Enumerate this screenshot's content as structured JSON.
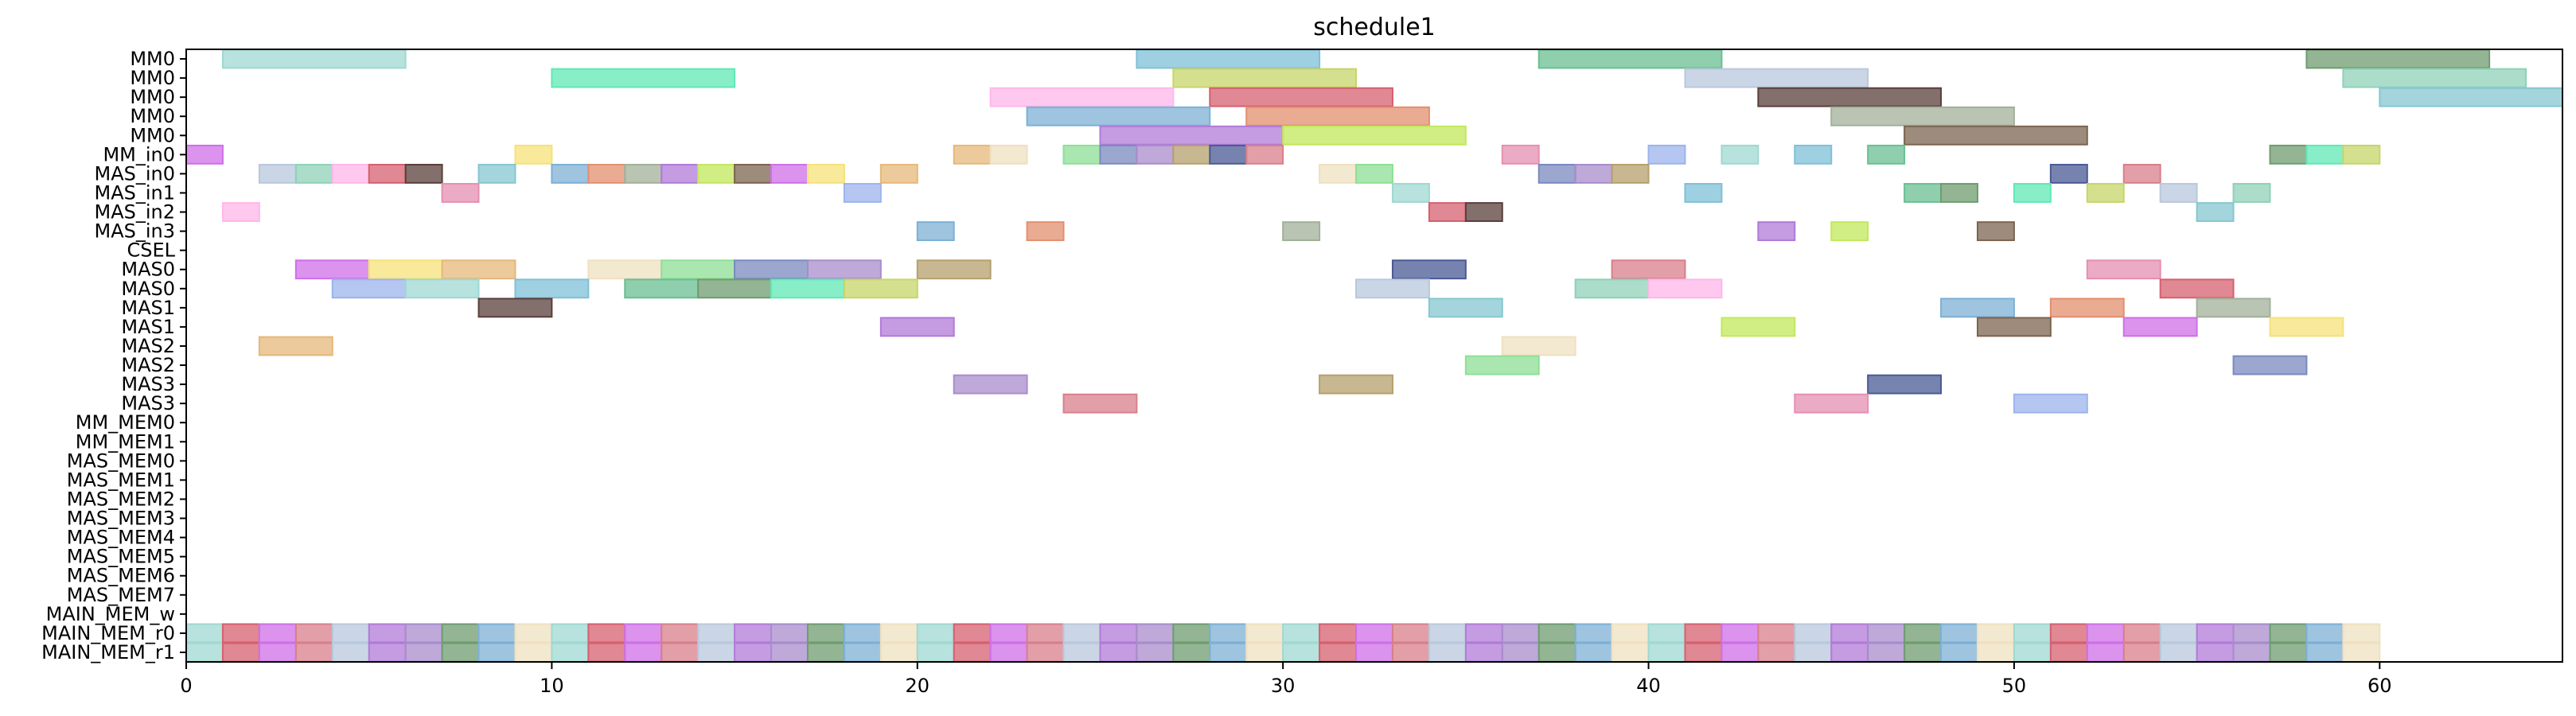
{
  "chart_data": {
    "type": "gantt",
    "title": "schedule1",
    "xlim": [
      0,
      65
    ],
    "x_ticks": [
      0,
      10,
      20,
      30,
      40,
      50,
      60
    ],
    "rows": [
      "MM0",
      "MM0",
      "MM0",
      "MM0",
      "MM0",
      "MM_in0",
      "MAS_in0",
      "MAS_in1",
      "MAS_in2",
      "MAS_in3",
      "CSEL",
      "MAS0",
      "MAS0",
      "MAS1",
      "MAS1",
      "MAS2",
      "MAS2",
      "MAS3",
      "MAS3",
      "MM_MEM0",
      "MM_MEM1",
      "MAS_MEM0",
      "MAS_MEM1",
      "MAS_MEM2",
      "MAS_MEM3",
      "MAS_MEM4",
      "MAS_MEM5",
      "MAS_MEM6",
      "MAS_MEM7",
      "MAIN_MEM_w",
      "MAIN_MEM_r0",
      "MAIN_MEM_r1"
    ],
    "palette": [
      "#9fd8d2",
      "#e38f6f",
      "#4a5a94",
      "#d6606f",
      "#8edf95",
      "#c7d56a",
      "#cf6fe8",
      "#7fc0d8",
      "#a2b09a",
      "#d87f8a",
      "#5a3f3a",
      "#7a8abf",
      "#b8c8dc",
      "#f5e27a",
      "#6abf91",
      "#b17ad8",
      "#e58fb0",
      "#85c7d0",
      "#a88ccc",
      "#8fd1b8",
      "#e6b87a",
      "#6f9c70",
      "#c2e85c",
      "#9cb4ec",
      "#7db0d6",
      "#b5a06c",
      "#ffb7e9",
      "#efe0c0",
      "#5fe8b6",
      "#7c6450"
    ],
    "tasks": [
      {
        "row": 0,
        "start": 1,
        "end": 6
      },
      {
        "row": 0,
        "start": 26,
        "end": 31
      },
      {
        "row": 0,
        "start": 37,
        "end": 42
      },
      {
        "row": 0,
        "start": 58,
        "end": 63
      },
      {
        "row": 1,
        "start": 10,
        "end": 15
      },
      {
        "row": 1,
        "start": 27,
        "end": 32
      },
      {
        "row": 1,
        "start": 41,
        "end": 46
      },
      {
        "row": 1,
        "start": 59,
        "end": 64
      },
      {
        "row": 2,
        "start": 22,
        "end": 27
      },
      {
        "row": 2,
        "start": 28,
        "end": 33
      },
      {
        "row": 2,
        "start": 43,
        "end": 48
      },
      {
        "row": 2,
        "start": 60,
        "end": 65
      },
      {
        "row": 3,
        "start": 23,
        "end": 28
      },
      {
        "row": 3,
        "start": 29,
        "end": 34
      },
      {
        "row": 3,
        "start": 45,
        "end": 50
      },
      {
        "row": 4,
        "start": 25,
        "end": 30
      },
      {
        "row": 4,
        "start": 30,
        "end": 35
      },
      {
        "row": 4,
        "start": 47,
        "end": 52
      },
      {
        "row": 5,
        "start": 0,
        "end": 1
      },
      {
        "row": 5,
        "start": 9,
        "end": 10
      },
      {
        "row": 5,
        "start": 21,
        "end": 22
      },
      {
        "row": 5,
        "start": 22,
        "end": 23
      },
      {
        "row": 5,
        "start": 24,
        "end": 25
      },
      {
        "row": 5,
        "start": 25,
        "end": 26
      },
      {
        "row": 5,
        "start": 26,
        "end": 27
      },
      {
        "row": 5,
        "start": 27,
        "end": 28
      },
      {
        "row": 5,
        "start": 28,
        "end": 29
      },
      {
        "row": 5,
        "start": 29,
        "end": 30
      },
      {
        "row": 5,
        "start": 36,
        "end": 37
      },
      {
        "row": 5,
        "start": 40,
        "end": 41
      },
      {
        "row": 5,
        "start": 42,
        "end": 43
      },
      {
        "row": 5,
        "start": 44,
        "end": 45
      },
      {
        "row": 5,
        "start": 46,
        "end": 47
      },
      {
        "row": 5,
        "start": 57,
        "end": 58
      },
      {
        "row": 5,
        "start": 58,
        "end": 59
      },
      {
        "row": 5,
        "start": 59,
        "end": 60
      },
      {
        "row": 6,
        "start": 2,
        "end": 3
      },
      {
        "row": 6,
        "start": 3,
        "end": 4
      },
      {
        "row": 6,
        "start": 4,
        "end": 5
      },
      {
        "row": 6,
        "start": 5,
        "end": 6
      },
      {
        "row": 6,
        "start": 6,
        "end": 7
      },
      {
        "row": 6,
        "start": 8,
        "end": 9
      },
      {
        "row": 6,
        "start": 10,
        "end": 11
      },
      {
        "row": 6,
        "start": 11,
        "end": 12
      },
      {
        "row": 6,
        "start": 12,
        "end": 13
      },
      {
        "row": 6,
        "start": 13,
        "end": 14
      },
      {
        "row": 6,
        "start": 14,
        "end": 15
      },
      {
        "row": 6,
        "start": 15,
        "end": 16
      },
      {
        "row": 6,
        "start": 16,
        "end": 17
      },
      {
        "row": 6,
        "start": 17,
        "end": 18
      },
      {
        "row": 6,
        "start": 19,
        "end": 20
      },
      {
        "row": 6,
        "start": 31,
        "end": 32
      },
      {
        "row": 6,
        "start": 32,
        "end": 33
      },
      {
        "row": 6,
        "start": 37,
        "end": 38
      },
      {
        "row": 6,
        "start": 38,
        "end": 39
      },
      {
        "row": 6,
        "start": 39,
        "end": 40
      },
      {
        "row": 6,
        "start": 51,
        "end": 52
      },
      {
        "row": 6,
        "start": 53,
        "end": 54
      },
      {
        "row": 7,
        "start": 7,
        "end": 8
      },
      {
        "row": 7,
        "start": 18,
        "end": 19
      },
      {
        "row": 7,
        "start": 33,
        "end": 34
      },
      {
        "row": 7,
        "start": 41,
        "end": 42
      },
      {
        "row": 7,
        "start": 47,
        "end": 48
      },
      {
        "row": 7,
        "start": 48,
        "end": 49
      },
      {
        "row": 7,
        "start": 50,
        "end": 51
      },
      {
        "row": 7,
        "start": 52,
        "end": 53
      },
      {
        "row": 7,
        "start": 54,
        "end": 55
      },
      {
        "row": 7,
        "start": 56,
        "end": 57
      },
      {
        "row": 8,
        "start": 1,
        "end": 2
      },
      {
        "row": 8,
        "start": 34,
        "end": 35
      },
      {
        "row": 8,
        "start": 35,
        "end": 36
      },
      {
        "row": 8,
        "start": 55,
        "end": 56
      },
      {
        "row": 9,
        "start": 20,
        "end": 21
      },
      {
        "row": 9,
        "start": 23,
        "end": 24
      },
      {
        "row": 9,
        "start": 30,
        "end": 31
      },
      {
        "row": 9,
        "start": 43,
        "end": 44
      },
      {
        "row": 9,
        "start": 45,
        "end": 46
      },
      {
        "row": 9,
        "start": 49,
        "end": 50
      },
      {
        "row": 11,
        "start": 3,
        "end": 5
      },
      {
        "row": 11,
        "start": 5,
        "end": 7
      },
      {
        "row": 11,
        "start": 7,
        "end": 9
      },
      {
        "row": 11,
        "start": 11,
        "end": 13
      },
      {
        "row": 11,
        "start": 13,
        "end": 15
      },
      {
        "row": 11,
        "start": 15,
        "end": 17
      },
      {
        "row": 11,
        "start": 17,
        "end": 19
      },
      {
        "row": 11,
        "start": 20,
        "end": 22
      },
      {
        "row": 11,
        "start": 33,
        "end": 35
      },
      {
        "row": 11,
        "start": 39,
        "end": 41
      },
      {
        "row": 11,
        "start": 52,
        "end": 54
      },
      {
        "row": 12,
        "start": 4,
        "end": 6
      },
      {
        "row": 12,
        "start": 6,
        "end": 8
      },
      {
        "row": 12,
        "start": 9,
        "end": 11
      },
      {
        "row": 12,
        "start": 12,
        "end": 14
      },
      {
        "row": 12,
        "start": 14,
        "end": 16
      },
      {
        "row": 12,
        "start": 16,
        "end": 18
      },
      {
        "row": 12,
        "start": 18,
        "end": 20
      },
      {
        "row": 12,
        "start": 32,
        "end": 34
      },
      {
        "row": 12,
        "start": 38,
        "end": 40
      },
      {
        "row": 12,
        "start": 40,
        "end": 42
      },
      {
        "row": 12,
        "start": 54,
        "end": 56
      },
      {
        "row": 13,
        "start": 8,
        "end": 10
      },
      {
        "row": 13,
        "start": 34,
        "end": 36
      },
      {
        "row": 13,
        "start": 48,
        "end": 50
      },
      {
        "row": 13,
        "start": 51,
        "end": 53
      },
      {
        "row": 13,
        "start": 55,
        "end": 57
      },
      {
        "row": 14,
        "start": 19,
        "end": 21
      },
      {
        "row": 14,
        "start": 42,
        "end": 44
      },
      {
        "row": 14,
        "start": 49,
        "end": 51
      },
      {
        "row": 14,
        "start": 53,
        "end": 55
      },
      {
        "row": 14,
        "start": 57,
        "end": 59
      },
      {
        "row": 15,
        "start": 2,
        "end": 4
      },
      {
        "row": 15,
        "start": 36,
        "end": 38
      },
      {
        "row": 16,
        "start": 35,
        "end": 37
      },
      {
        "row": 16,
        "start": 56,
        "end": 58
      },
      {
        "row": 17,
        "start": 21,
        "end": 23
      },
      {
        "row": 17,
        "start": 31,
        "end": 33
      },
      {
        "row": 17,
        "start": 46,
        "end": 48
      },
      {
        "row": 18,
        "start": 24,
        "end": 26
      },
      {
        "row": 18,
        "start": 44,
        "end": 46
      },
      {
        "row": 18,
        "start": 50,
        "end": 52
      }
    ],
    "dense_rows": [
      {
        "row": 30,
        "start": 0,
        "end": 60
      },
      {
        "row": 31,
        "start": 0,
        "end": 60
      }
    ]
  }
}
